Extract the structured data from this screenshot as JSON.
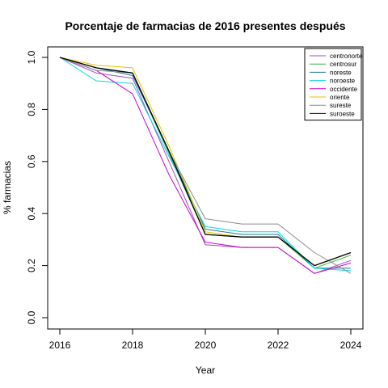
{
  "chart_data": {
    "type": "line",
    "title": "Porcentaje de farmacias de 2016 presentes después",
    "xlabel": "Year",
    "ylabel": "% farmacias",
    "xlim": [
      2016,
      2024
    ],
    "ylim": [
      0,
      1
    ],
    "x_ticks": [
      "2016",
      "2018",
      "2020",
      "2022",
      "2024"
    ],
    "y_ticks": [
      "0.0",
      "0.2",
      "0.4",
      "0.6",
      "0.8",
      "1.0"
    ],
    "grid": false,
    "legend_position": "top-right",
    "x": [
      2016,
      2017,
      2018,
      2019,
      2020,
      2021,
      2022,
      2023,
      2024
    ],
    "series": [
      {
        "name": "centronorte",
        "color": "#9a4fbf",
        "values": [
          1.0,
          0.94,
          0.92,
          0.6,
          0.28,
          0.27,
          0.27,
          0.17,
          0.22
        ]
      },
      {
        "name": "centrosur",
        "color": "#3cb043",
        "values": [
          1.0,
          0.96,
          0.94,
          0.63,
          0.32,
          0.31,
          0.31,
          0.19,
          0.24
        ]
      },
      {
        "name": "noreste",
        "color": "#1f7a8c",
        "values": [
          1.0,
          0.96,
          0.93,
          0.64,
          0.34,
          0.32,
          0.32,
          0.19,
          0.19
        ]
      },
      {
        "name": "noroeste",
        "color": "#00d5e6",
        "values": [
          1.0,
          0.91,
          0.9,
          0.62,
          0.35,
          0.33,
          0.33,
          0.19,
          0.18
        ]
      },
      {
        "name": "occidente",
        "color": "#cc00cc",
        "values": [
          1.0,
          0.95,
          0.86,
          0.55,
          0.29,
          0.27,
          0.27,
          0.17,
          0.21
        ]
      },
      {
        "name": "oriente",
        "color": "#e8c200",
        "values": [
          1.0,
          0.97,
          0.96,
          0.66,
          0.33,
          0.31,
          0.31,
          0.2,
          0.25
        ]
      },
      {
        "name": "sureste",
        "color": "#8c8c8c",
        "values": [
          1.0,
          0.95,
          0.94,
          0.64,
          0.38,
          0.36,
          0.36,
          0.25,
          0.17
        ]
      },
      {
        "name": "suroeste",
        "color": "#000000",
        "values": [
          1.0,
          0.96,
          0.94,
          0.64,
          0.32,
          0.31,
          0.31,
          0.2,
          0.25
        ]
      }
    ]
  }
}
